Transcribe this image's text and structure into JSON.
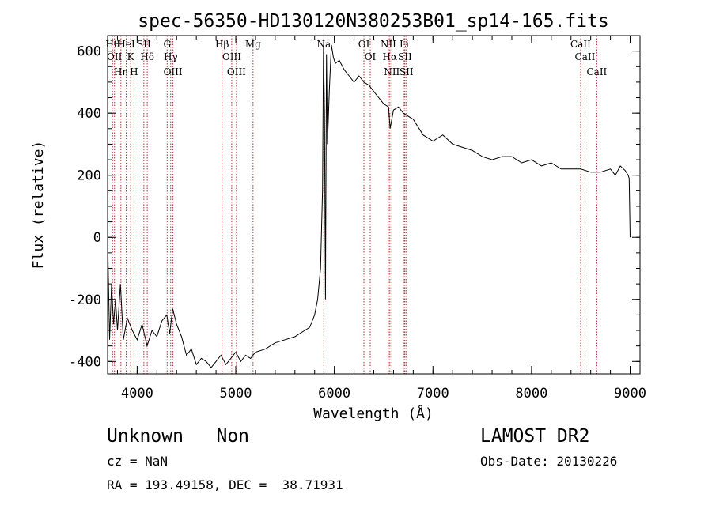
{
  "chart_data": {
    "type": "line",
    "title": "spec-56350-HD130120N380253B01_sp14-165.fits",
    "xlabel": "Wavelength (Å)",
    "ylabel": "Flux (relative)",
    "xlim": [
      3700,
      9100
    ],
    "ylim": [
      -440,
      650
    ],
    "x_ticks": [
      4000,
      5000,
      6000,
      7000,
      8000,
      9000
    ],
    "y_ticks": [
      -400,
      -200,
      0,
      200,
      400,
      600
    ],
    "grid": false,
    "series": [
      {
        "x": [
          3700,
          3720,
          3740,
          3760,
          3780,
          3800,
          3830,
          3860,
          3900,
          3950,
          4000,
          4050,
          4100,
          4150,
          4200,
          4250,
          4300,
          4330,
          4360,
          4400,
          4450,
          4500,
          4550,
          4600,
          4650,
          4700,
          4750,
          4800,
          4850,
          4900,
          4950,
          5000,
          5050,
          5100,
          5150,
          5200,
          5300,
          5400,
          5500,
          5600,
          5700,
          5750,
          5800,
          5830,
          5860,
          5880,
          5890,
          5900,
          5910,
          5920,
          5930,
          5950,
          5970,
          5990,
          6010,
          6050,
          6100,
          6150,
          6200,
          6250,
          6300,
          6350,
          6400,
          6450,
          6500,
          6550,
          6565,
          6600,
          6650,
          6700,
          6750,
          6800,
          6900,
          7000,
          7100,
          7200,
          7300,
          7400,
          7500,
          7600,
          7700,
          7800,
          7900,
          8000,
          8100,
          8200,
          8300,
          8400,
          8500,
          8600,
          8700,
          8800,
          8850,
          8900,
          8950,
          8980,
          8990,
          9000
        ],
        "y": [
          0,
          -330,
          -150,
          -280,
          -200,
          -300,
          -150,
          -330,
          -260,
          -300,
          -330,
          -280,
          -350,
          -300,
          -320,
          -270,
          -250,
          -310,
          -230,
          -280,
          -320,
          -380,
          -360,
          -410,
          -390,
          -400,
          -420,
          -400,
          -380,
          -410,
          -390,
          -370,
          -400,
          -380,
          -390,
          -370,
          -360,
          -340,
          -330,
          -320,
          -300,
          -290,
          -250,
          -200,
          -100,
          150,
          620,
          400,
          -200,
          590,
          300,
          480,
          620,
          580,
          560,
          570,
          540,
          520,
          500,
          520,
          500,
          490,
          470,
          450,
          430,
          420,
          350,
          410,
          420,
          400,
          390,
          380,
          330,
          310,
          330,
          300,
          290,
          280,
          260,
          250,
          260,
          260,
          240,
          250,
          230,
          240,
          220,
          220,
          220,
          210,
          210,
          220,
          200,
          230,
          215,
          200,
          190,
          0
        ]
      }
    ],
    "lines": [
      {
        "x": 3750,
        "label": "Hθ"
      },
      {
        "x": 3770,
        "label": "OII"
      },
      {
        "x": 3835,
        "label": "Hη"
      },
      {
        "x": 3889,
        "label": "HeI"
      },
      {
        "x": 3934,
        "label": "K"
      },
      {
        "x": 3968,
        "label": "H"
      },
      {
        "x": 4068,
        "label": "SII"
      },
      {
        "x": 4102,
        "label": "Hδ"
      },
      {
        "x": 4304,
        "label": "G"
      },
      {
        "x": 4340,
        "label": "Hγ"
      },
      {
        "x": 4363,
        "label": "OIII"
      },
      {
        "x": 4861,
        "label": "Hβ"
      },
      {
        "x": 4959,
        "label": "OIII"
      },
      {
        "x": 5007,
        "label": "OIII"
      },
      {
        "x": 5175,
        "label": "Mg"
      },
      {
        "x": 5893,
        "label": "Na"
      },
      {
        "x": 6300,
        "label": "OI"
      },
      {
        "x": 6364,
        "label": "OI"
      },
      {
        "x": 6548,
        "label": "NII"
      },
      {
        "x": 6563,
        "label": "Hα"
      },
      {
        "x": 6583,
        "label": "NII"
      },
      {
        "x": 6708,
        "label": "Li"
      },
      {
        "x": 6716,
        "label": "SII"
      },
      {
        "x": 6731,
        "label": "SII"
      },
      {
        "x": 8498,
        "label": "CaII"
      },
      {
        "x": 8542,
        "label": "CaII"
      },
      {
        "x": 8662,
        "label": "CaII"
      }
    ]
  },
  "info": {
    "class_text": "Unknown   Non",
    "cz_text": "cz = NaN",
    "coords_text": "RA = 193.49158, DEC =  38.71931",
    "survey_text": "LAMOST DR2",
    "obs_date_text": "Obs-Date: 20130226"
  }
}
